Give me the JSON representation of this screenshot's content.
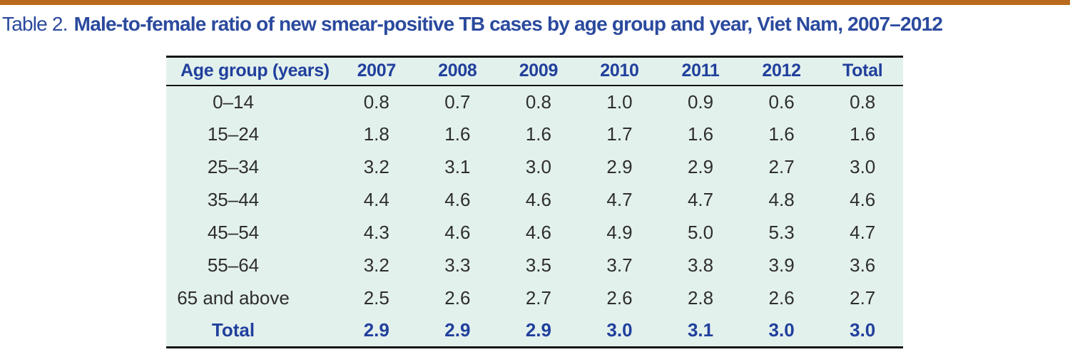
{
  "page": {
    "caption_prefix": "Table 2.",
    "caption_title": "Male-to-female ratio of new smear-positive TB cases by age group and year, Viet Nam, 2007–2012"
  },
  "colors": {
    "accent_orange": "#b96a1c",
    "caption_blue": "#2b4a9e",
    "table_blue": "#21409c",
    "table_background": "#e3f1ed",
    "body_text": "#2e2e2e",
    "rule_black": "#141414"
  },
  "table": {
    "columns": [
      "Age group (years)",
      "2007",
      "2008",
      "2009",
      "2010",
      "2011",
      "2012",
      "Total"
    ],
    "rows": [
      {
        "label": "0–14",
        "values": [
          "0.8",
          "0.7",
          "0.8",
          "1.0",
          "0.9",
          "0.6",
          "0.8"
        ],
        "is_total": false
      },
      {
        "label": "15–24",
        "values": [
          "1.8",
          "1.6",
          "1.6",
          "1.7",
          "1.6",
          "1.6",
          "1.6"
        ],
        "is_total": false
      },
      {
        "label": "25–34",
        "values": [
          "3.2",
          "3.1",
          "3.0",
          "2.9",
          "2.9",
          "2.7",
          "3.0"
        ],
        "is_total": false
      },
      {
        "label": "35–44",
        "values": [
          "4.4",
          "4.6",
          "4.6",
          "4.7",
          "4.7",
          "4.8",
          "4.6"
        ],
        "is_total": false
      },
      {
        "label": "45–54",
        "values": [
          "4.3",
          "4.6",
          "4.6",
          "4.9",
          "5.0",
          "5.3",
          "4.7"
        ],
        "is_total": false
      },
      {
        "label": "55–64",
        "values": [
          "3.2",
          "3.3",
          "3.5",
          "3.7",
          "3.8",
          "3.9",
          "3.6"
        ],
        "is_total": false
      },
      {
        "label": "65 and above",
        "values": [
          "2.5",
          "2.6",
          "2.7",
          "2.6",
          "2.8",
          "2.6",
          "2.7"
        ],
        "is_total": false
      },
      {
        "label": "Total",
        "values": [
          "2.9",
          "2.9",
          "2.9",
          "3.0",
          "3.1",
          "3.0",
          "3.0"
        ],
        "is_total": true
      }
    ]
  }
}
